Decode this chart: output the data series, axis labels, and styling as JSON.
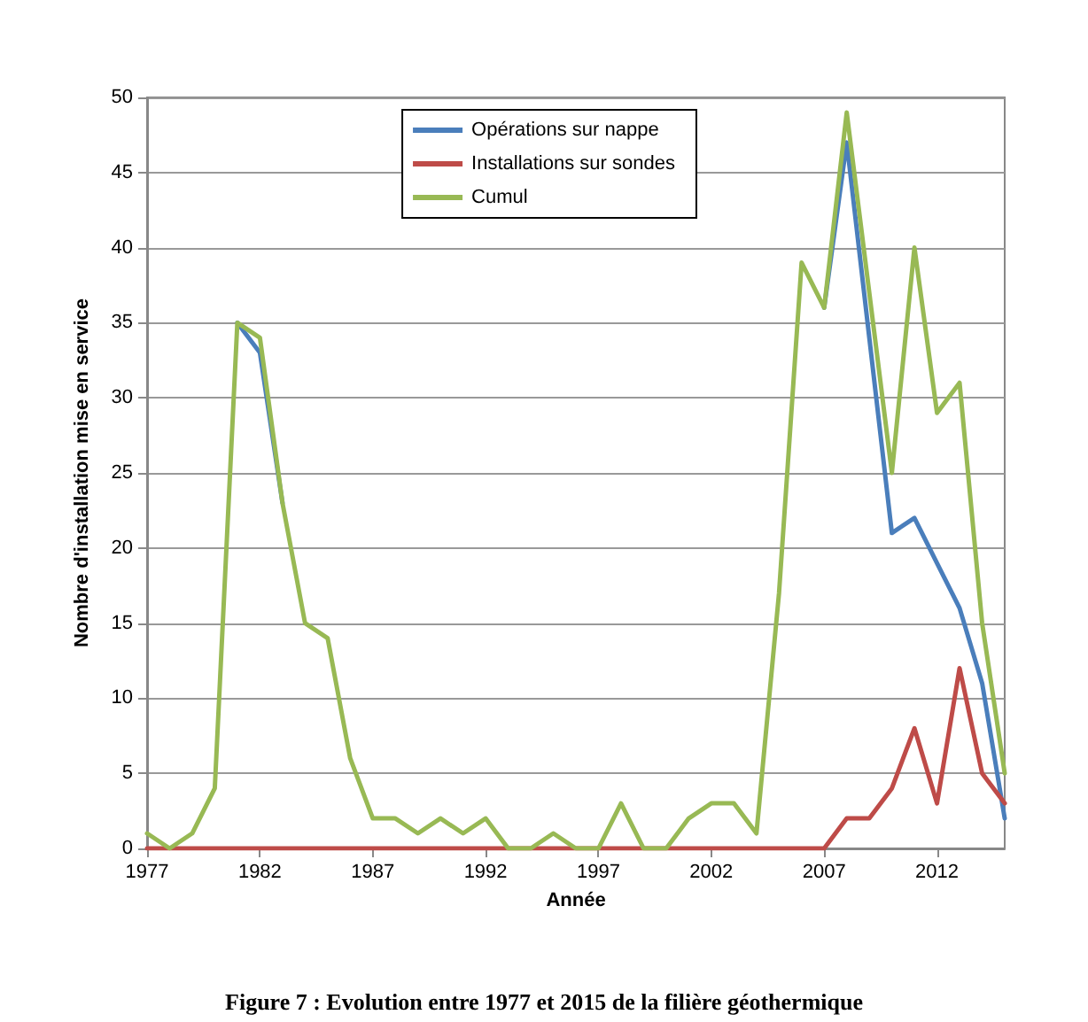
{
  "chart_data": {
    "type": "line",
    "title": "Figure 7 : Evolution entre 1977 et 2015 de la filière géothermique",
    "xlabel": "Année",
    "ylabel": "Nombre d'installation mise en service",
    "x": [
      1977,
      1978,
      1979,
      1980,
      1981,
      1982,
      1983,
      1984,
      1985,
      1986,
      1987,
      1988,
      1989,
      1990,
      1991,
      1992,
      1993,
      1994,
      1995,
      1996,
      1997,
      1998,
      1999,
      2000,
      2001,
      2002,
      2003,
      2004,
      2005,
      2006,
      2007,
      2008,
      2009,
      2010,
      2011,
      2012,
      2013,
      2014,
      2015
    ],
    "series": [
      {
        "name": "Opérations sur nappe",
        "color": "#4a7ebb",
        "values": [
          null,
          null,
          null,
          null,
          35,
          33,
          23,
          null,
          null,
          null,
          null,
          null,
          null,
          null,
          null,
          null,
          null,
          null,
          null,
          null,
          null,
          null,
          null,
          null,
          null,
          null,
          null,
          null,
          null,
          null,
          36,
          47,
          34,
          21,
          22,
          19,
          16,
          11,
          2
        ]
      },
      {
        "name": "Installations sur sondes",
        "color": "#be4b48",
        "values": [
          0,
          0,
          0,
          0,
          0,
          0,
          0,
          0,
          0,
          0,
          0,
          0,
          0,
          0,
          0,
          0,
          0,
          0,
          0,
          0,
          0,
          0,
          0,
          0,
          0,
          0,
          0,
          0,
          0,
          0,
          0,
          2,
          2,
          4,
          8,
          3,
          12,
          5,
          3
        ]
      },
      {
        "name": "Cumul",
        "color": "#98b954",
        "values": [
          1,
          0,
          1,
          4,
          35,
          34,
          23,
          15,
          14,
          6,
          2,
          2,
          1,
          2,
          1,
          2,
          0,
          0,
          1,
          0,
          0,
          3,
          0,
          0,
          2,
          3,
          3,
          1,
          17,
          39,
          36,
          49,
          37,
          25,
          40,
          29,
          31,
          15,
          5
        ]
      }
    ],
    "xlim": [
      1977,
      2015
    ],
    "xticks": [
      1977,
      1982,
      1987,
      1992,
      1997,
      2002,
      2007,
      2012
    ],
    "ylim": [
      0,
      50
    ],
    "yticks": [
      0,
      5,
      10,
      15,
      20,
      25,
      30,
      35,
      40,
      45,
      50
    ],
    "grid": "y",
    "legend": "top",
    "marker": "none",
    "line_style": "solid"
  }
}
